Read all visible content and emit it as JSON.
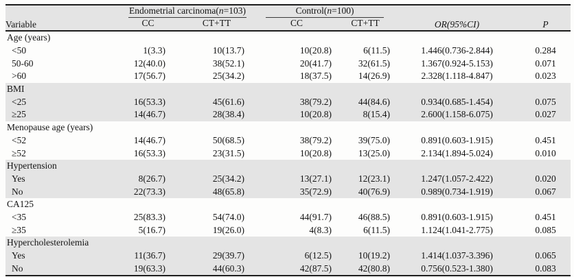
{
  "colors": {
    "band_shade": "#e4e4e4",
    "rule": "#1c1c1c",
    "background": "#fdfdfc",
    "text": "#141414"
  },
  "table": {
    "header": {
      "variable": "Variable",
      "groups": [
        {
          "prefix": "Endometrial carcinoma(",
          "n": "n",
          "suffix": "=103)"
        },
        {
          "prefix": "Control(",
          "n": "n",
          "suffix": "=100)"
        }
      ],
      "subcolumns": [
        "CC",
        "CT+TT",
        "CC",
        "CT+TT"
      ],
      "or_label": "OR(95%CI)",
      "p_label": "P"
    },
    "rows": [
      {
        "label": "Age (years)",
        "kind": "section",
        "shaded": false,
        "cells": null
      },
      {
        "label": "<50",
        "kind": "sub",
        "shaded": false,
        "cells": [
          "1(3.3)",
          "10(13.7)",
          "10(20.8)",
          "6(11.5)",
          "1.446(0.736-2.844)",
          "0.284"
        ]
      },
      {
        "label": "50-60",
        "kind": "sub",
        "shaded": false,
        "cells": [
          "12(40.0)",
          "38(52.1)",
          "20(41.7)",
          "32(61.5)",
          "1.367(0.924-5.153)",
          "0.071"
        ]
      },
      {
        "label": ">60",
        "kind": "sub",
        "shaded": false,
        "cells": [
          "17(56.7)",
          "25(34.2)",
          "18(37.5)",
          "14(26.9)",
          "2.328(1.118-4.847)",
          "0.023"
        ]
      },
      {
        "label": "BMI",
        "kind": "section",
        "shaded": true,
        "cells": null
      },
      {
        "label": "<25",
        "kind": "sub",
        "shaded": true,
        "cells": [
          "16(53.3)",
          "45(61.6)",
          "38(79.2)",
          "44(84.6)",
          "0.934(0.685-1.454)",
          "0.075"
        ]
      },
      {
        "label": "≥25",
        "kind": "sub",
        "shaded": true,
        "cells": [
          "14(46.7)",
          "28(38.4)",
          "10(20.8)",
          "8(15.4)",
          "2.600(1.158-6.075)",
          "0.027"
        ]
      },
      {
        "label": "Menopause age (years)",
        "kind": "section",
        "shaded": false,
        "cells": null
      },
      {
        "label": "<52",
        "kind": "sub",
        "shaded": false,
        "cells": [
          "14(46.7)",
          "50(68.5)",
          "38(79.2)",
          "39(75.0)",
          "0.891(0.603-1.915)",
          "0.451"
        ]
      },
      {
        "label": "≥52",
        "kind": "sub",
        "shaded": false,
        "cells": [
          "16(53.3)",
          "23(31.5)",
          "10(20.8)",
          "13(25.0)",
          "2.134(1.894-5.024)",
          "0.010"
        ]
      },
      {
        "label": "Hypertension",
        "kind": "section",
        "shaded": true,
        "cells": null
      },
      {
        "label": "Yes",
        "kind": "sub",
        "shaded": true,
        "cells": [
          "8(26.7)",
          "25(34.2)",
          "13(27.1)",
          "12(23.1)",
          "1.247(1.057-2.422)",
          "0.020"
        ]
      },
      {
        "label": "No",
        "kind": "sub",
        "shaded": true,
        "cells": [
          "22(73.3)",
          "48(65.8)",
          "35(72.9)",
          "40(76.9)",
          "0.989(0.734-1.919)",
          "0.067"
        ]
      },
      {
        "label": "CA125",
        "kind": "section",
        "shaded": false,
        "cells": null
      },
      {
        "label": "<35",
        "kind": "sub",
        "shaded": false,
        "cells": [
          "25(83.3)",
          "54(74.0)",
          "44(91.7)",
          "46(88.5)",
          "0.891(0.603-1.915)",
          "0.451"
        ]
      },
      {
        "label": "≥35",
        "kind": "sub",
        "shaded": false,
        "cells": [
          "5(16.7)",
          "19(26.0)",
          "4(8.3)",
          "6(11.5)",
          "1.124(1.041-2.775)",
          "0.085"
        ]
      },
      {
        "label": "Hypercholesterolemia",
        "kind": "section",
        "shaded": true,
        "cells": null
      },
      {
        "label": "Yes",
        "kind": "sub",
        "shaded": true,
        "cells": [
          "11(36.7)",
          "29(39.7)",
          "6(12.5)",
          "10(19.2)",
          "1.414(1.037-3.396)",
          "0.065"
        ]
      },
      {
        "label": "No",
        "kind": "sub",
        "shaded": true,
        "cells": [
          "19(63.3)",
          "44(60.3)",
          "42(87.5)",
          "42(80.8)",
          "0.756(0.523-1.380)",
          "0.083"
        ]
      }
    ]
  }
}
